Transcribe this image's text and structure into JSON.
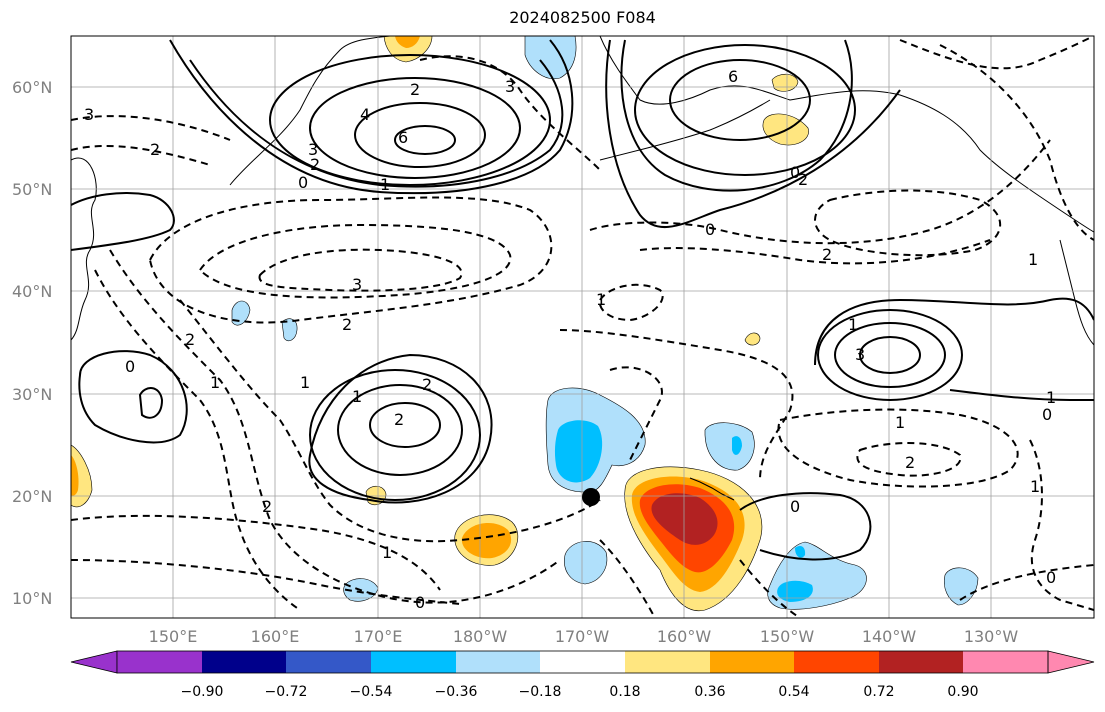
{
  "title": "2024082500 F084",
  "map": {
    "lat_ticks": [
      "60°N",
      "50°N",
      "40°N",
      "30°N",
      "20°N",
      "10°N"
    ],
    "lon_ticks": [
      "150°E",
      "160°E",
      "170°E",
      "180°W",
      "170°W",
      "160°W",
      "150°W",
      "140°W",
      "130°W"
    ],
    "contour_labels": {
      "solid": [
        "6",
        "4",
        "3",
        "2",
        "0",
        "1",
        "2",
        "6",
        "0",
        "1",
        "2",
        "2",
        "3",
        "1",
        "0",
        "0",
        "0",
        "1"
      ],
      "dashed": [
        "2",
        "3",
        "1",
        "3",
        "2",
        "1",
        "2",
        "1",
        "0",
        "1",
        "2",
        "1",
        "2",
        "1",
        "0",
        "3",
        "1",
        "2",
        "2",
        "0"
      ]
    },
    "marker": "black-dot"
  },
  "colorbar": {
    "labels": [
      "−0.90",
      "−0.72",
      "−0.54",
      "−0.36",
      "−0.18",
      "0.18",
      "0.36",
      "0.54",
      "0.72",
      "0.90"
    ],
    "colors": [
      "#9932cc",
      "#00008b",
      "#3458c8",
      "#00bfff",
      "#b0e0fb",
      "#ffffff",
      "#ffe680",
      "#ffa500",
      "#ff4500",
      "#b22222",
      "#ff88b0"
    ]
  }
}
